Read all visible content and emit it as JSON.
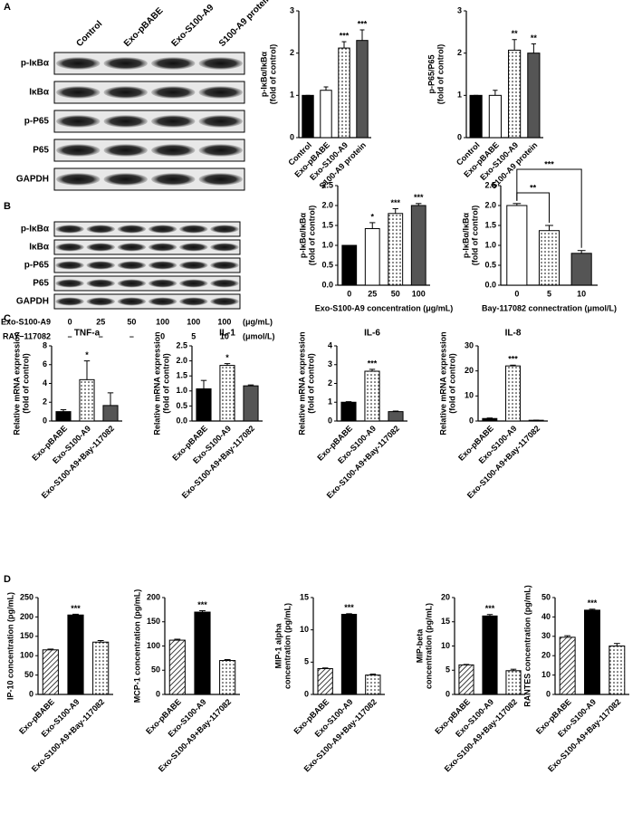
{
  "panels": [
    "A",
    "B",
    "C",
    "D"
  ],
  "blots": [
    {
      "lanes": [
        "Control",
        "Exo-pBABE",
        "Exo-S100-A9",
        "S100-A9 protein"
      ],
      "rows": [
        "p-IκBα",
        "IκBα",
        "p-P65",
        "P65",
        "GAPDH"
      ]
    },
    {
      "rows": [
        "p-IκBα",
        "IκBα",
        "p-P65",
        "P65",
        "GAPDH"
      ],
      "conditions": [
        {
          "name": "Exo-S100-A9",
          "values": [
            "0",
            "25",
            "50",
            "100",
            "100",
            "100"
          ],
          "unit": "(μg/mL)"
        },
        {
          "name": "RAY−117082",
          "values": [
            "–",
            "–",
            "–",
            "0",
            "5",
            "10"
          ],
          "unit": "(μmol/L)"
        }
      ]
    }
  ],
  "chart_data": [
    {
      "type": "bar",
      "ylabel": [
        "p-IκBα/IκBα",
        "(fold of control)"
      ],
      "categories": [
        "Control",
        "Exo-pBABE",
        "Exo-S100-A9",
        "S100-A9 protein"
      ],
      "values": [
        1,
        1.12,
        2.12,
        2.3
      ],
      "errors": [
        0,
        0.08,
        0.15,
        0.25
      ],
      "colors": [
        "#000000",
        "#ffffff",
        "dots",
        "#555555"
      ],
      "annotations": [
        {
          "index": 2,
          "text": "***"
        },
        {
          "index": 3,
          "text": "***"
        }
      ],
      "ylim": [
        0,
        3
      ],
      "yticks": [
        0,
        1,
        2,
        3
      ],
      "rotate_labels": true
    },
    {
      "type": "bar",
      "ylabel": [
        "p-P65/P65",
        "(fold of control)"
      ],
      "categories": [
        "Control",
        "Exo-pBABE",
        "Exo-S100-A9",
        "S100-A9 protein"
      ],
      "values": [
        1,
        1.0,
        2.07,
        2.0
      ],
      "errors": [
        0,
        0.12,
        0.25,
        0.22
      ],
      "colors": [
        "#000000",
        "#ffffff",
        "dots",
        "#555555"
      ],
      "annotations": [
        {
          "index": 2,
          "text": "**"
        },
        {
          "index": 3,
          "text": "**"
        }
      ],
      "ylim": [
        0,
        3
      ],
      "yticks": [
        0,
        1,
        2,
        3
      ],
      "rotate_labels": true
    },
    {
      "type": "bar",
      "ylabel": [
        "p-IκBα/IκBα",
        "(fold of control)"
      ],
      "xlabel": "Exo-S100-A9 concentration (μg/mL)",
      "categories": [
        "0",
        "25",
        "50",
        "100"
      ],
      "values": [
        1,
        1.42,
        1.8,
        2.0
      ],
      "errors": [
        0,
        0.15,
        0.12,
        0.05
      ],
      "colors": [
        "#000000",
        "#ffffff",
        "dots",
        "#555555"
      ],
      "annotations": [
        {
          "index": 1,
          "text": "*"
        },
        {
          "index": 2,
          "text": "***"
        },
        {
          "index": 3,
          "text": "***"
        }
      ],
      "ylim": [
        0,
        2.5
      ],
      "yticks": [
        {
          "value": 0,
          "label": "0.0"
        },
        {
          "value": 0.5,
          "label": "0.5"
        },
        {
          "value": 1,
          "label": "1.0"
        },
        {
          "value": 1.5,
          "label": "1.5"
        },
        {
          "value": 2,
          "label": "2.0"
        },
        {
          "value": 2.5,
          "label": "2.5"
        }
      ],
      "rotate_labels": false
    },
    {
      "type": "bar",
      "ylabel": [
        "p-IκBα/IκBα",
        "(fold of control)"
      ],
      "xlabel": "Bay-117082 connectration (μmol/L)",
      "categories": [
        "0",
        "5",
        "10"
      ],
      "values": [
        2.0,
        1.37,
        0.8
      ],
      "errors": [
        0.05,
        0.13,
        0.07
      ],
      "colors": [
        "#ffffff",
        "dots",
        "#555555"
      ],
      "brackets": [
        {
          "from": 0,
          "to": 1,
          "text": "**"
        },
        {
          "from": 0,
          "to": 2,
          "text": "***"
        }
      ],
      "ylim": [
        0,
        2.5
      ],
      "yticks": [
        {
          "value": 0,
          "label": "0.0"
        },
        {
          "value": 0.5,
          "label": "0.5"
        },
        {
          "value": 1,
          "label": "1.0"
        },
        {
          "value": 1.5,
          "label": "1.5"
        },
        {
          "value": 2,
          "label": "2.0"
        },
        {
          "value": 2.5,
          "label": "2.5"
        }
      ],
      "rotate_labels": false
    },
    {
      "type": "bar",
      "title": "TNF-a",
      "ylabel": [
        "Relative mRNA expression",
        "(fold of control)"
      ],
      "categories": [
        "Exo-pBABE",
        "Exo-S100-A9",
        "Exo-S100-A9+Bay-117082"
      ],
      "values": [
        1.0,
        4.4,
        1.65
      ],
      "errors": [
        0.2,
        2.0,
        1.35
      ],
      "colors": [
        "#000000",
        "dots",
        "#555555"
      ],
      "annotations": [
        {
          "index": 1,
          "text": "*"
        }
      ],
      "ylim": [
        0,
        8
      ],
      "yticks": [
        0,
        2,
        4,
        6,
        8
      ],
      "rotate_labels": true
    },
    {
      "type": "bar",
      "title": "IL-1",
      "ylabel": [
        "Relative mRNA expression",
        "(fold of control)"
      ],
      "categories": [
        "Exo-pBABE",
        "Exo-S100-A9",
        "Exo-S100-A9+Bay-117082"
      ],
      "values": [
        1.07,
        1.85,
        1.17
      ],
      "errors": [
        0.28,
        0.06,
        0.03
      ],
      "colors": [
        "#000000",
        "dots",
        "#555555"
      ],
      "annotations": [
        {
          "index": 1,
          "text": "*"
        }
      ],
      "ylim": [
        0,
        2.5
      ],
      "yticks": [
        {
          "value": 0,
          "label": "0.0"
        },
        {
          "value": 0.5,
          "label": "0.5"
        },
        {
          "value": 1,
          "label": "1.0"
        },
        {
          "value": 1.5,
          "label": "1.5"
        },
        {
          "value": 2,
          "label": "2.0"
        },
        {
          "value": 2.5,
          "label": "2.5"
        }
      ],
      "rotate_labels": true
    },
    {
      "type": "bar",
      "title": "IL-6",
      "ylabel": [
        "Relative mRNA expression",
        "(fold of control)"
      ],
      "categories": [
        "Exo-pBABE",
        "Exo-S100-A9",
        "Exo-S100-A9+Bay-117082"
      ],
      "values": [
        1.0,
        2.65,
        0.5
      ],
      "errors": [
        0.03,
        0.1,
        0.03
      ],
      "colors": [
        "#000000",
        "dots",
        "#555555"
      ],
      "annotations": [
        {
          "index": 1,
          "text": "***"
        }
      ],
      "ylim": [
        0,
        4
      ],
      "yticks": [
        0,
        1,
        2,
        3,
        4
      ],
      "rotate_labels": true
    },
    {
      "type": "bar",
      "title": "IL-8",
      "ylabel": [
        "Relative mRNA expression",
        "(fold of control)"
      ],
      "categories": [
        "Exo-pBABE",
        "Exo-S100-A9",
        "Exo-S100-A9+Bay-117082"
      ],
      "values": [
        1.0,
        22.0,
        0.3
      ],
      "errors": [
        0.2,
        0.3,
        0.05
      ],
      "colors": [
        "#000000",
        "dots",
        "#555555"
      ],
      "annotations": [
        {
          "index": 1,
          "text": "***"
        }
      ],
      "ylim": [
        0,
        30
      ],
      "yticks": [
        0,
        10,
        20,
        30
      ],
      "rotate_labels": true
    },
    {
      "type": "bar",
      "ylabel": [
        "IP-10 concentration (pg/mL)"
      ],
      "categories": [
        "Exo-pBABE",
        "Exo-S100-A9",
        "Exo-S100-A9+Bay-117082"
      ],
      "values": [
        115,
        205,
        135
      ],
      "errors": [
        2,
        2,
        4
      ],
      "colors": [
        "hatch",
        "#000000",
        "dots"
      ],
      "annotations": [
        {
          "index": 1,
          "text": "***"
        }
      ],
      "ylim": [
        0,
        250
      ],
      "yticks": [
        0,
        50,
        100,
        150,
        200,
        250
      ],
      "rotate_labels": true
    },
    {
      "type": "bar",
      "ylabel": [
        "MCP-1 concentration (pg/mL)"
      ],
      "categories": [
        "Exo-pBABE",
        "Exo-S100-A9",
        "Exo-S100-A9+Bay-117082"
      ],
      "values": [
        112,
        170,
        70
      ],
      "errors": [
        2,
        3,
        2
      ],
      "colors": [
        "hatch",
        "#000000",
        "dots"
      ],
      "annotations": [
        {
          "index": 1,
          "text": "***"
        }
      ],
      "ylim": [
        0,
        200
      ],
      "yticks": [
        0,
        50,
        100,
        150,
        200
      ],
      "rotate_labels": true
    },
    {
      "type": "bar",
      "ylabel": [
        "MIP-1 alpha",
        "concentration (pg/mL)"
      ],
      "categories": [
        "Exo-pBABE",
        "Exo-S100-A9",
        "Exo-S100-A9+Bay-117082"
      ],
      "values": [
        4,
        12.4,
        3
      ],
      "errors": [
        0.1,
        0.1,
        0.15
      ],
      "colors": [
        "hatch",
        "#000000",
        "dots"
      ],
      "annotations": [
        {
          "index": 1,
          "text": "***"
        }
      ],
      "ylim": [
        0,
        15
      ],
      "yticks": [
        0,
        5,
        10,
        15
      ],
      "rotate_labels": true
    },
    {
      "type": "bar",
      "ylabel": [
        "MIP-beta",
        "concentration (pg/mL)"
      ],
      "categories": [
        "Exo-pBABE",
        "Exo-S100-A9",
        "Exo-S100-A9+Bay-117082"
      ],
      "values": [
        6.1,
        16.2,
        4.9
      ],
      "errors": [
        0.1,
        0.3,
        0.3
      ],
      "colors": [
        "hatch",
        "#000000",
        "dots"
      ],
      "annotations": [
        {
          "index": 1,
          "text": "***"
        }
      ],
      "ylim": [
        0,
        20
      ],
      "yticks": [
        0,
        5,
        10,
        15,
        20
      ],
      "rotate_labels": true
    },
    {
      "type": "bar",
      "ylabel": [
        "RANTES concentration (pg/mL)"
      ],
      "categories": [
        "Exo-pBABE",
        "Exo-S100-A9",
        "Exo-S100-A9+Bay-117082"
      ],
      "values": [
        29.5,
        43.5,
        25
      ],
      "errors": [
        0.8,
        0.5,
        1.3
      ],
      "colors": [
        "hatch",
        "#000000",
        "dots"
      ],
      "annotations": [
        {
          "index": 1,
          "text": "***"
        }
      ],
      "ylim": [
        0,
        50
      ],
      "yticks": [
        0,
        10,
        20,
        30,
        40,
        50
      ],
      "rotate_labels": true
    }
  ]
}
